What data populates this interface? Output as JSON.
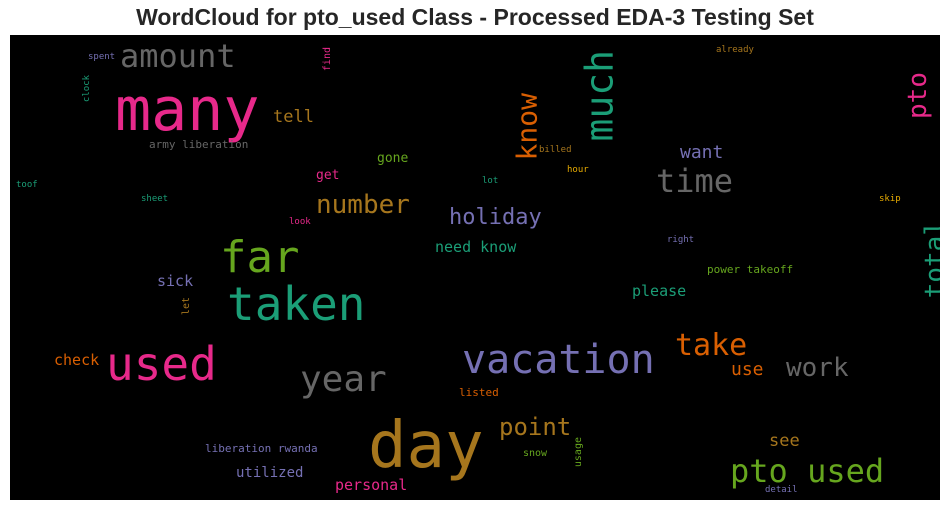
{
  "title": "WordCloud for pto_used Class - Processed EDA-3 Testing Set",
  "chart_data": {
    "type": "wordcloud",
    "title": "WordCloud for pto_used Class - Processed EDA-3 Testing Set",
    "background": "#000000",
    "colormap": "Dark2",
    "words": [
      {
        "text": "many",
        "color": "#e7298a"
      },
      {
        "text": "day",
        "color": "#a6761d"
      },
      {
        "text": "used",
        "color": "#e7298a"
      },
      {
        "text": "taken",
        "color": "#1b9e77"
      },
      {
        "text": "far",
        "color": "#66a61e"
      },
      {
        "text": "vacation",
        "color": "#7570b3"
      },
      {
        "text": "much",
        "color": "#1b9e77"
      },
      {
        "text": "year",
        "color": "#666666"
      },
      {
        "text": "amount",
        "color": "#666666"
      },
      {
        "text": "pto used",
        "color": "#66a61e"
      },
      {
        "text": "time",
        "color": "#666666"
      },
      {
        "text": "take",
        "color": "#d95f02"
      },
      {
        "text": "know",
        "color": "#d95f02"
      },
      {
        "text": "total",
        "color": "#1b9e77"
      },
      {
        "text": "pto",
        "color": "#e7298a"
      },
      {
        "text": "number",
        "color": "#a6761d"
      },
      {
        "text": "work",
        "color": "#666666"
      },
      {
        "text": "point",
        "color": "#a6761d"
      },
      {
        "text": "holiday",
        "color": "#7570b3"
      },
      {
        "text": "want",
        "color": "#7570b3"
      },
      {
        "text": "use",
        "color": "#d95f02"
      },
      {
        "text": "tell",
        "color": "#a6761d"
      },
      {
        "text": "see",
        "color": "#a6761d"
      },
      {
        "text": "need know",
        "color": "#1b9e77"
      },
      {
        "text": "please",
        "color": "#1b9e77"
      },
      {
        "text": "sick",
        "color": "#7570b3"
      },
      {
        "text": "check",
        "color": "#d95f02"
      },
      {
        "text": "personal",
        "color": "#e7298a"
      },
      {
        "text": "utilized",
        "color": "#7570b3"
      },
      {
        "text": "gone",
        "color": "#66a61e"
      },
      {
        "text": "get",
        "color": "#e7298a"
      },
      {
        "text": "army liberation",
        "color": "#666666"
      },
      {
        "text": "liberation rwanda",
        "color": "#7570b3"
      },
      {
        "text": "power takeoff",
        "color": "#66a61e"
      },
      {
        "text": "listed",
        "color": "#d95f02"
      },
      {
        "text": "snow",
        "color": "#66a61e"
      },
      {
        "text": "usage",
        "color": "#66a61e"
      },
      {
        "text": "let",
        "color": "#a6761d"
      },
      {
        "text": "find",
        "color": "#e7298a"
      },
      {
        "text": "billed",
        "color": "#a6761d"
      },
      {
        "text": "hour",
        "color": "#e6ab02"
      },
      {
        "text": "lot",
        "color": "#1b9e77"
      },
      {
        "text": "already",
        "color": "#a6761d"
      },
      {
        "text": "skip",
        "color": "#e6ab02"
      },
      {
        "text": "right",
        "color": "#7570b3"
      },
      {
        "text": "look",
        "color": "#e7298a"
      },
      {
        "text": "sheet",
        "color": "#1b9e77"
      },
      {
        "text": "spent",
        "color": "#7570b3"
      },
      {
        "text": "clock",
        "color": "#1b9e77"
      },
      {
        "text": "toof",
        "color": "#1b9e77"
      },
      {
        "text": "detail",
        "color": "#7570b3"
      }
    ]
  }
}
